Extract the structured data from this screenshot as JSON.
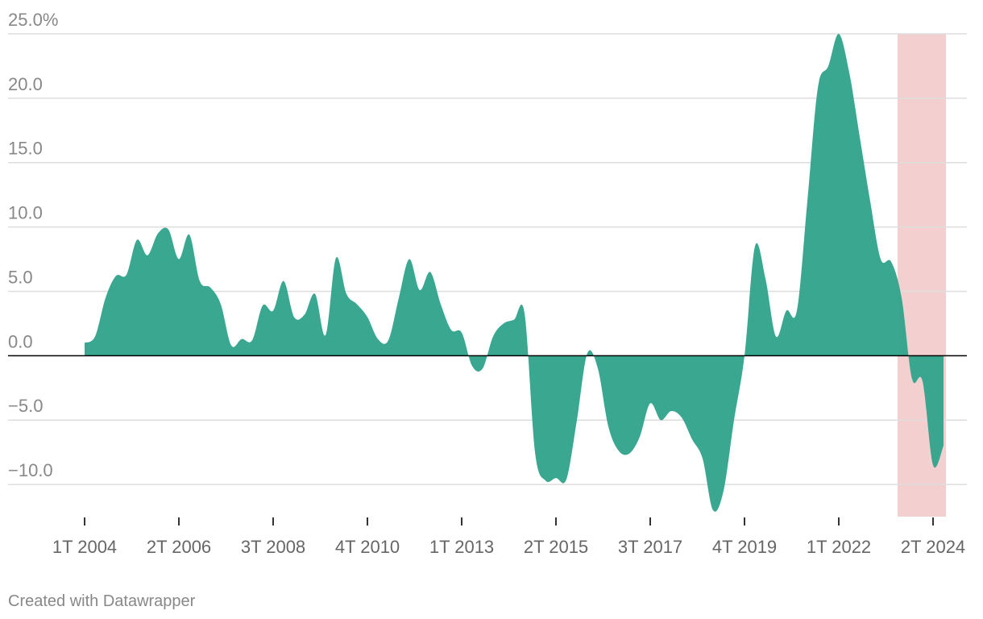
{
  "chart_data": {
    "type": "area",
    "categories": [
      "1T 2004",
      "2T 2004",
      "3T 2004",
      "4T 2004",
      "1T 2005",
      "2T 2005",
      "3T 2005",
      "4T 2005",
      "1T 2006",
      "2T 2006",
      "3T 2006",
      "4T 2006",
      "1T 2007",
      "2T 2007",
      "3T 2007",
      "4T 2007",
      "1T 2008",
      "2T 2008",
      "3T 2008",
      "4T 2008",
      "1T 2009",
      "2T 2009",
      "3T 2009",
      "4T 2009",
      "1T 2010",
      "2T 2010",
      "3T 2010",
      "4T 2010",
      "1T 2011",
      "2T 2011",
      "3T 2011",
      "4T 2011",
      "1T 2012",
      "2T 2012",
      "3T 2012",
      "4T 2012",
      "1T 2013",
      "2T 2013",
      "3T 2013",
      "4T 2013",
      "1T 2014",
      "2T 2014",
      "3T 2014",
      "4T 2014",
      "1T 2015",
      "2T 2015",
      "3T 2015",
      "4T 2015",
      "1T 2016",
      "2T 2016",
      "3T 2016",
      "4T 2016",
      "1T 2017",
      "2T 2017",
      "3T 2017",
      "4T 2017",
      "1T 2018",
      "2T 2018",
      "3T 2018",
      "4T 2018",
      "1T 2019",
      "2T 2019",
      "3T 2019",
      "4T 2019",
      "1T 2020",
      "2T 2020",
      "3T 2020",
      "4T 2020",
      "1T 2021",
      "2T 2021",
      "3T 2021",
      "4T 2021",
      "1T 2022",
      "2T 2022",
      "3T 2022",
      "4T 2022",
      "1T 2023",
      "2T 2023",
      "3T 2023",
      "4T 2023",
      "1T 2024",
      "2T 2024",
      "3T 2024"
    ],
    "values": [
      1.0,
      1.5,
      4.5,
      6.2,
      6.3,
      9.0,
      7.8,
      9.5,
      9.8,
      7.5,
      9.4,
      5.8,
      5.3,
      4.0,
      0.8,
      1.3,
      1.2,
      3.9,
      3.5,
      5.8,
      3.0,
      3.2,
      4.8,
      1.6,
      7.6,
      4.8,
      4.0,
      3.0,
      1.3,
      1.2,
      4.5,
      7.5,
      5.1,
      6.5,
      4.0,
      2.0,
      1.8,
      -0.8,
      -1.0,
      1.5,
      2.5,
      2.8,
      3.3,
      -7.5,
      -9.7,
      -9.5,
      -9.6,
      -5.0,
      0.2,
      -1.0,
      -5.5,
      -7.4,
      -7.6,
      -6.3,
      -3.7,
      -5.0,
      -4.3,
      -4.8,
      -6.5,
      -8.0,
      -12.0,
      -10.5,
      -5.0,
      0.0,
      8.5,
      6.0,
      1.5,
      3.5,
      3.5,
      12.0,
      20.8,
      22.5,
      25.0,
      22.0,
      17.0,
      12.0,
      7.5,
      7.3,
      4.5,
      -1.8,
      -2.0,
      -8.5,
      -7.0
    ],
    "color": "#2fa38b",
    "highlight": [
      "2T 2023",
      "3T 2024"
    ],
    "highlight_color": "#f3d0cf",
    "xticks": [
      "1T 2004",
      "2T 2006",
      "3T 2008",
      "4T 2010",
      "1T 2013",
      "2T 2015",
      "3T 2017",
      "4T 2019",
      "1T 2022",
      "2T 2024"
    ],
    "ylim": [
      -12.5,
      25
    ],
    "yticks": [
      {
        "value": 25,
        "label": "25.0%"
      },
      {
        "value": 20,
        "label": "20.0"
      },
      {
        "value": 15,
        "label": "15.0"
      },
      {
        "value": 10,
        "label": "10.0"
      },
      {
        "value": 5,
        "label": "5.0"
      },
      {
        "value": 0,
        "label": "0.0"
      },
      {
        "value": -5,
        "label": "−5.0"
      },
      {
        "value": -10,
        "label": "−10.0"
      }
    ],
    "grid": true,
    "credit": "Created with Datawrapper"
  }
}
